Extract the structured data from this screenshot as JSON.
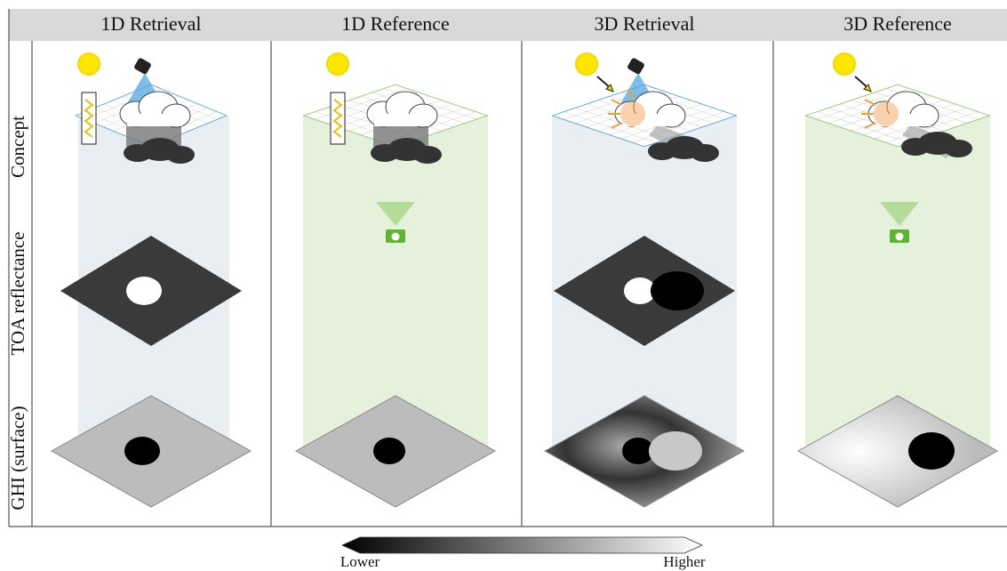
{
  "header": {
    "columns": [
      "1D Retrieval",
      "1D Reference",
      "3D Retrieval",
      "3D Reference"
    ]
  },
  "rows": [
    "Concept",
    "TOA reflectance",
    "GHI (surface)"
  ],
  "colorbar": {
    "low": "Lower",
    "high": "Higher"
  }
}
